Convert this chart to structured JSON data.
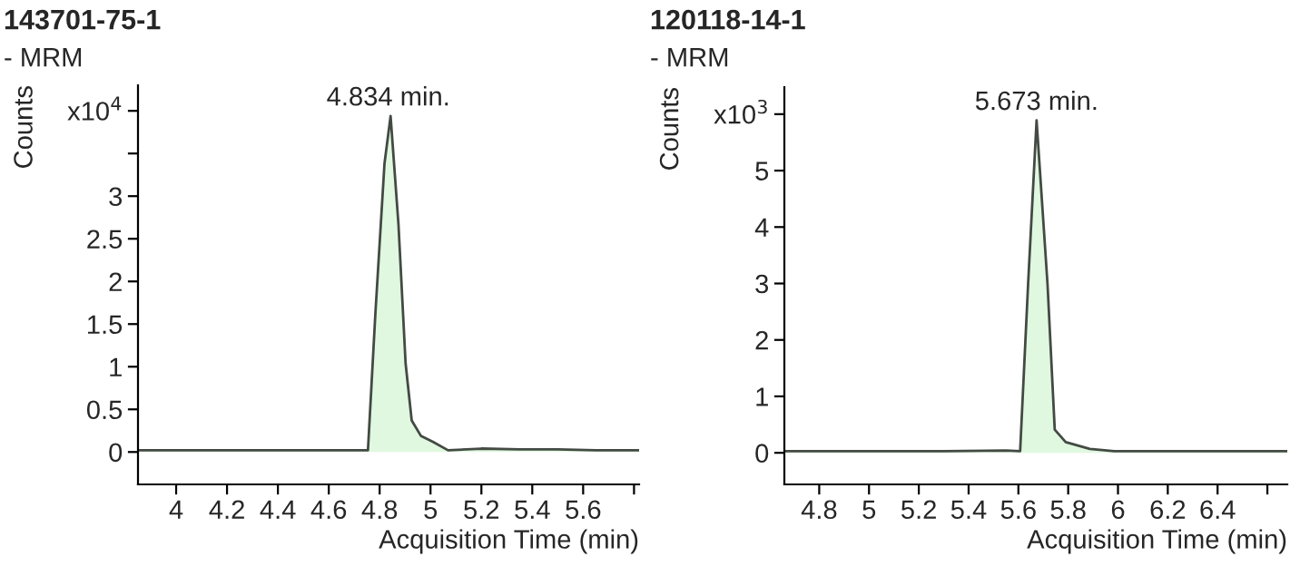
{
  "chart_data": [
    {
      "type": "area",
      "title": "143701-75-1",
      "xlabel": "Acquisition Time (min)",
      "ylabel": "Counts",
      "annotations": [
        "- MRM",
        {
          "text": "4.834 min.",
          "x": 4.834,
          "y": 3.94
        }
      ],
      "x": [
        3.85,
        4.2,
        4.5,
        4.754,
        4.783,
        4.819,
        4.843,
        4.874,
        4.902,
        4.926,
        4.962,
        5.009,
        5.069,
        5.2,
        5.35,
        5.5,
        5.65,
        5.82
      ],
      "series": [
        {
          "color": "#e0f8e0",
          "values": [
            0.02,
            0.02,
            0.02,
            0.02,
            1.61,
            3.38,
            3.94,
            2.67,
            1.04,
            0.37,
            0.19,
            0.12,
            0.02,
            0.04,
            0.03,
            0.03,
            0.02,
            0.02
          ]
        }
      ],
      "xlim": [
        3.85,
        5.82
      ],
      "xticks": [
        4,
        4.2,
        4.4,
        4.6,
        4.8,
        5,
        5.2,
        5.4,
        5.6,
        {
          "value": 5.8,
          "label": null
        }
      ],
      "ylim": [
        -0.38,
        4.3
      ],
      "yticks": [
        0,
        0.5,
        1,
        1.5,
        2,
        2.5,
        3,
        {
          "value": 3.5,
          "label": null
        },
        {
          "value": 4,
          "label": "x10$^{4}$"
        }
      ],
      "grid": false,
      "legend": false
    },
    {
      "type": "area",
      "title": "120118-14-1",
      "xlabel": "Acquisition Time (min)",
      "ylabel": "Counts",
      "annotations": [
        "- MRM",
        {
          "text": "5.673 min.",
          "x": 5.673,
          "y": 5.89
        }
      ],
      "x": [
        4.66,
        5.0,
        5.3,
        5.55,
        5.607,
        5.639,
        5.673,
        5.717,
        5.746,
        5.79,
        5.887,
        5.985,
        6.2,
        6.45,
        6.68
      ],
      "series": [
        {
          "color": "#e0f8e0",
          "values": [
            0.03,
            0.03,
            0.03,
            0.04,
            0.03,
            2.99,
            5.89,
            2.99,
            0.41,
            0.19,
            0.07,
            0.03,
            0.03,
            0.03,
            0.03
          ]
        }
      ],
      "xlim": [
        4.66,
        6.68
      ],
      "xticks": [
        4.8,
        5,
        5.2,
        5.4,
        5.6,
        5.8,
        6,
        6.2,
        6.4,
        {
          "value": 6.6,
          "label": null
        }
      ],
      "ylim": [
        -0.56,
        6.48
      ],
      "yticks": [
        0,
        1,
        2,
        3,
        4,
        5,
        {
          "value": 6,
          "label": "x10$^{3}$"
        }
      ],
      "grid": false,
      "legend": false
    }
  ]
}
